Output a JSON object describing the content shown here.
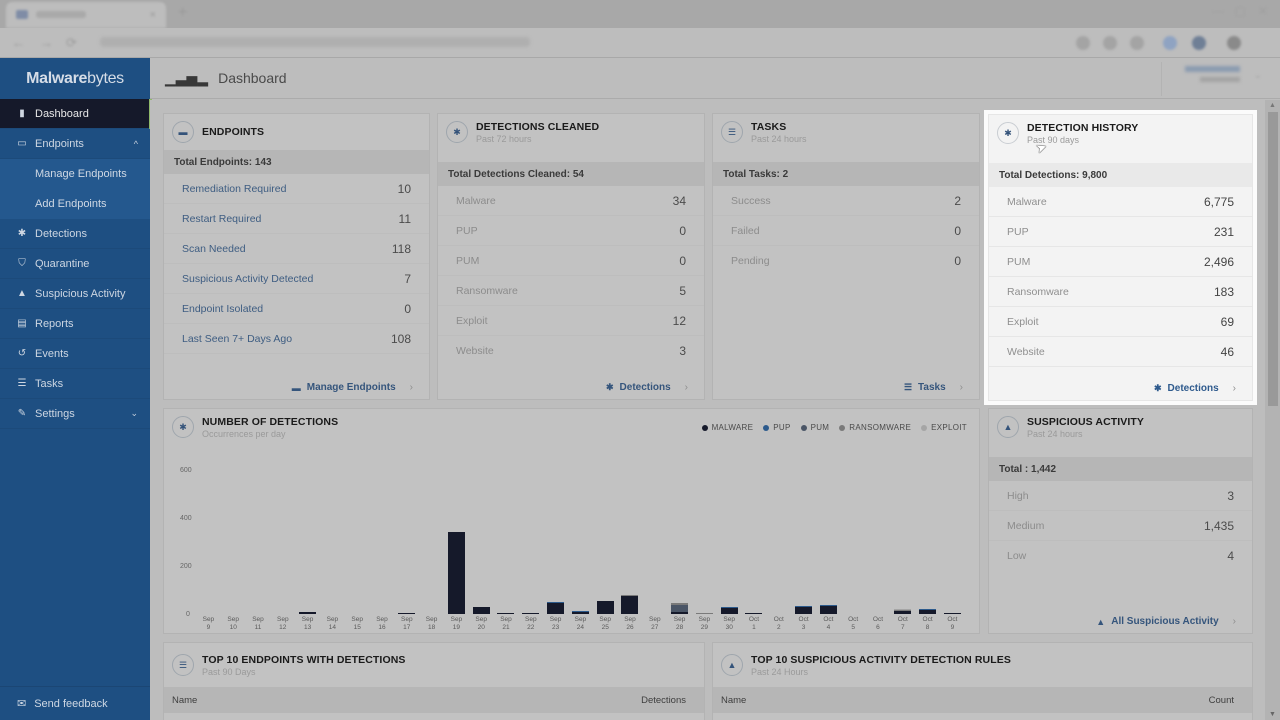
{
  "browser": {
    "tab_close": "×",
    "new_tab": "+",
    "back": "←",
    "forward": "→",
    "reload": "⟳"
  },
  "sidebar": {
    "logo_bold": "M",
    "logo_a": "alware",
    "logo_b": "bytes",
    "items": [
      {
        "label": "Dashboard",
        "icon": "bar-chart-icon",
        "glyph": "▮"
      },
      {
        "label": "Endpoints",
        "icon": "monitor-icon",
        "glyph": "▭",
        "chev": "^"
      },
      {
        "label": "Detections",
        "icon": "bug-icon",
        "glyph": "✱"
      },
      {
        "label": "Quarantine",
        "icon": "shield-icon",
        "glyph": "⛉"
      },
      {
        "label": "Suspicious Activity",
        "icon": "lock-icon",
        "glyph": "▲"
      },
      {
        "label": "Reports",
        "icon": "document-icon",
        "glyph": "▤"
      },
      {
        "label": "Events",
        "icon": "history-icon",
        "glyph": "↺"
      },
      {
        "label": "Tasks",
        "icon": "tasks-icon",
        "glyph": "☰"
      },
      {
        "label": "Settings",
        "icon": "wrench-icon",
        "glyph": "✎",
        "chev": "⌄"
      }
    ],
    "sub_items": [
      "Manage Endpoints",
      "Add Endpoints"
    ],
    "feedback": "Send feedback",
    "feedback_glyph": "✉"
  },
  "header": {
    "title": "Dashboard",
    "icon_glyph": "▮▮▮"
  },
  "cards": {
    "endpoints": {
      "title": "ENDPOINTS",
      "total": "Total Endpoints: 143",
      "rows": [
        {
          "label": "Remediation Required",
          "value": "10"
        },
        {
          "label": "Restart Required",
          "value": "11"
        },
        {
          "label": "Scan Needed",
          "value": "118"
        },
        {
          "label": "Suspicious Activity Detected",
          "value": "7"
        },
        {
          "label": "Endpoint Isolated",
          "value": "0"
        },
        {
          "label": "Last Seen 7+ Days Ago",
          "value": "108"
        }
      ],
      "footer": "Manage Endpoints"
    },
    "detections_cleaned": {
      "title": "DETECTIONS CLEANED",
      "subtitle": "Past 72 hours",
      "total": "Total Detections Cleaned: 54",
      "rows": [
        {
          "label": "Malware",
          "value": "34"
        },
        {
          "label": "PUP",
          "value": "0"
        },
        {
          "label": "PUM",
          "value": "0"
        },
        {
          "label": "Ransomware",
          "value": "5"
        },
        {
          "label": "Exploit",
          "value": "12"
        },
        {
          "label": "Website",
          "value": "3"
        }
      ],
      "footer": "Detections"
    },
    "tasks": {
      "title": "TASKS",
      "subtitle": "Past 24 hours",
      "total": "Total Tasks: 2",
      "rows": [
        {
          "label": "Success",
          "value": "2"
        },
        {
          "label": "Failed",
          "value": "0"
        },
        {
          "label": "Pending",
          "value": "0"
        }
      ],
      "footer": "Tasks"
    },
    "detection_history": {
      "title": "DETECTION HISTORY",
      "subtitle": "Past 90 days",
      "total": "Total Detections: 9,800",
      "rows": [
        {
          "label": "Malware",
          "value": "6,775"
        },
        {
          "label": "PUP",
          "value": "231"
        },
        {
          "label": "PUM",
          "value": "2,496"
        },
        {
          "label": "Ransomware",
          "value": "183"
        },
        {
          "label": "Exploit",
          "value": "69"
        },
        {
          "label": "Website",
          "value": "46"
        }
      ],
      "footer": "Detections"
    },
    "suspicious_activity": {
      "title": "SUSPICIOUS ACTIVITY",
      "subtitle": "Past 24 hours",
      "total": "Total : 1,442",
      "rows": [
        {
          "label": "High",
          "value": "3"
        },
        {
          "label": "Medium",
          "value": "1,435"
        },
        {
          "label": "Low",
          "value": "4"
        }
      ],
      "footer": "All Suspicious Activity"
    },
    "number_of_detections": {
      "title": "NUMBER OF DETECTIONS",
      "subtitle": "Occurrences per day"
    },
    "top_endpoints": {
      "title": "TOP 10 ENDPOINTS WITH DETECTIONS",
      "subtitle": "Past 90 Days",
      "col_name": "Name",
      "col_value": "Detections"
    },
    "top_rules": {
      "title": "TOP 10 SUSPICIOUS ACTIVITY DETECTION RULES",
      "subtitle": "Past 24 Hours",
      "col_name": "Name",
      "col_value": "Count"
    }
  },
  "chevron": "›",
  "colors": {
    "malware": "#15192a",
    "pup": "#2c5a8c",
    "pum": "#4a5566",
    "ransomware": "#7a7a7a",
    "exploit": "#a5a5a5",
    "sidebar": "#1e4f82",
    "link": "#35557c"
  },
  "chart_data": {
    "type": "bar",
    "stacked": true,
    "title": "NUMBER OF DETECTIONS",
    "subtitle": "Occurrences per day",
    "xlabel": "",
    "ylabel": "",
    "ylim": [
      0,
      600
    ],
    "yticks": [
      0,
      200,
      400,
      600
    ],
    "legend_position": "top-right",
    "categories": [
      "Sep 9",
      "Sep 10",
      "Sep 11",
      "Sep 12",
      "Sep 13",
      "Sep 14",
      "Sep 15",
      "Sep 16",
      "Sep 17",
      "Sep 18",
      "Sep 19",
      "Sep 20",
      "Sep 21",
      "Sep 22",
      "Sep 23",
      "Sep 24",
      "Sep 25",
      "Sep 26",
      "Sep 27",
      "Sep 28",
      "Sep 29",
      "Sep 30",
      "Oct 1",
      "Oct 2",
      "Oct 3",
      "Oct 4",
      "Oct 5",
      "Oct 6",
      "Oct 7",
      "Oct 8",
      "Oct 9"
    ],
    "series": [
      {
        "name": "MALWARE",
        "color": "#15192a",
        "values": [
          0,
          0,
          0,
          0,
          8,
          0,
          0,
          0,
          3,
          0,
          340,
          30,
          6,
          6,
          45,
          8,
          55,
          75,
          0,
          10,
          0,
          25,
          5,
          0,
          28,
          32,
          0,
          0,
          12,
          18,
          1
        ]
      },
      {
        "name": "PUP",
        "color": "#2c5a8c",
        "values": [
          0,
          0,
          0,
          0,
          0,
          0,
          0,
          0,
          0,
          0,
          0,
          0,
          0,
          0,
          3,
          3,
          0,
          0,
          0,
          0,
          0,
          3,
          0,
          0,
          3,
          3,
          0,
          0,
          0,
          2,
          0
        ]
      },
      {
        "name": "PUM",
        "color": "#4a5566",
        "values": [
          0,
          0,
          0,
          0,
          0,
          0,
          0,
          0,
          0,
          0,
          0,
          0,
          0,
          0,
          0,
          0,
          0,
          0,
          0,
          28,
          0,
          0,
          0,
          0,
          0,
          0,
          0,
          0,
          0,
          0,
          0
        ]
      },
      {
        "name": "RANSOMWARE",
        "color": "#7a7a7a",
        "values": [
          0,
          0,
          0,
          0,
          0,
          0,
          0,
          0,
          0,
          0,
          0,
          0,
          0,
          0,
          0,
          0,
          0,
          2,
          0,
          8,
          1,
          0,
          0,
          0,
          0,
          0,
          0,
          0,
          6,
          0,
          0
        ]
      },
      {
        "name": "EXPLOIT",
        "color": "#a5a5a5",
        "values": [
          0,
          0,
          0,
          0,
          0,
          0,
          0,
          0,
          0,
          0,
          0,
          0,
          0,
          0,
          0,
          0,
          0,
          0,
          0,
          0,
          0,
          0,
          0,
          0,
          0,
          0,
          0,
          0,
          5,
          0,
          0
        ]
      }
    ]
  }
}
